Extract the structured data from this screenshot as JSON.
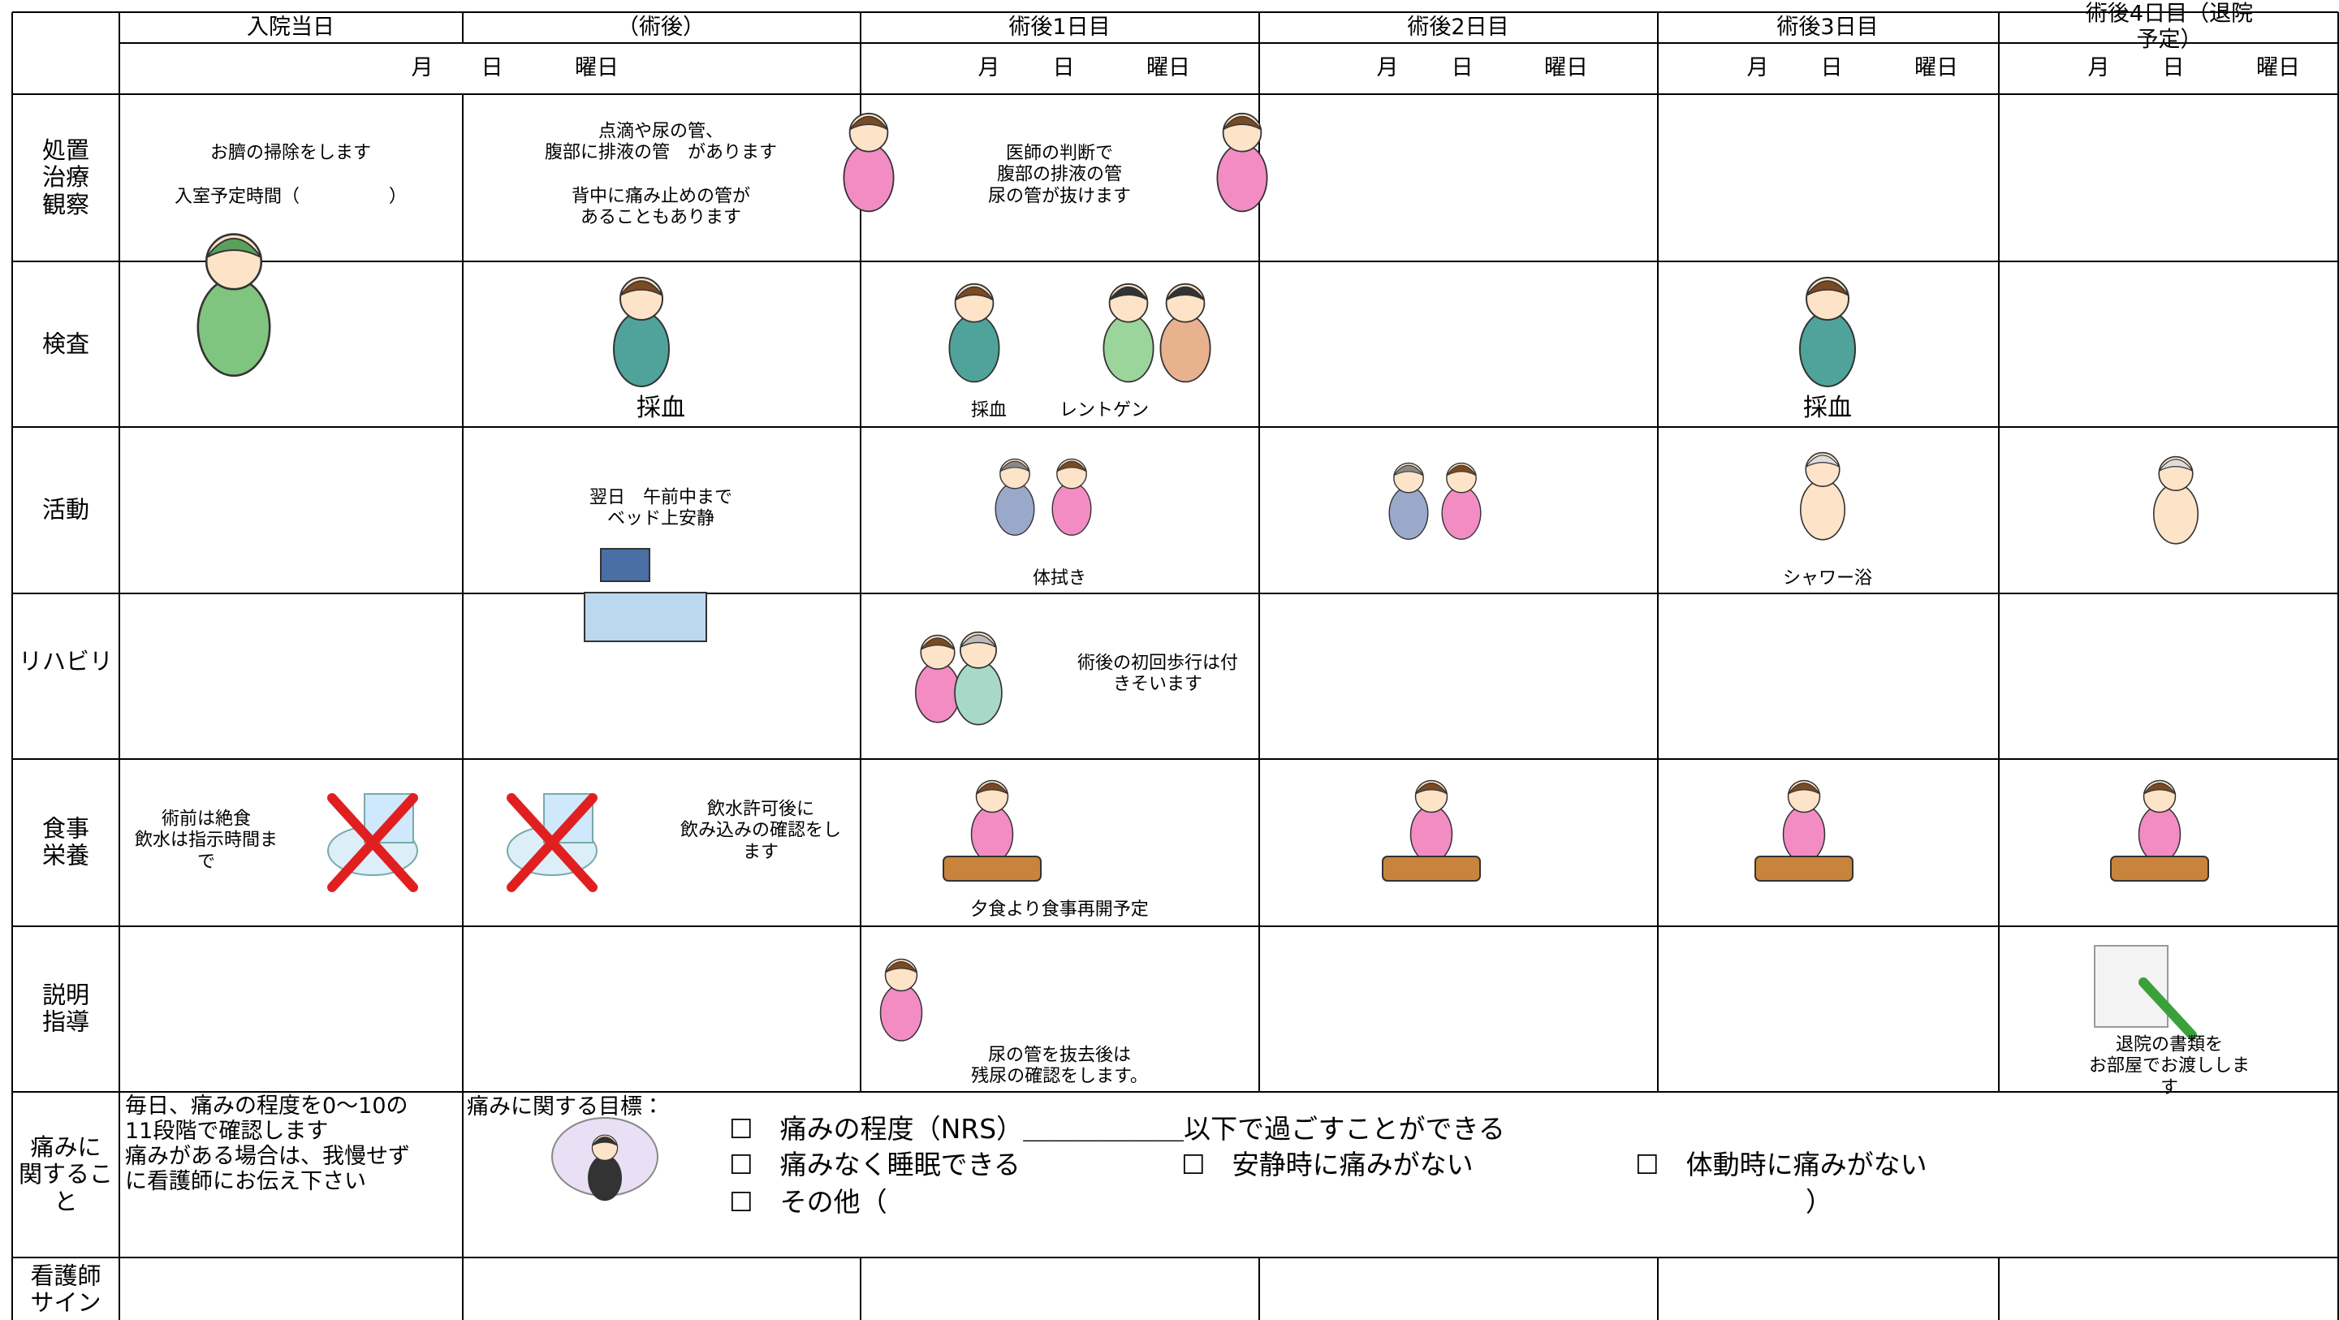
{
  "header": {
    "days": [
      "入院当日",
      "（術後）",
      "術後1日目",
      "術後2日目",
      "術後3日目",
      "術後4日目（退院予定）"
    ],
    "date_row": {
      "month": "月",
      "day": "日",
      "weekday": "曜日"
    }
  },
  "rows": [
    {
      "label": "処置\n治療\n観察",
      "cells": [
        "お臍の掃除をします",
        "入室予定時間（　　　　　）",
        "点滴や尿の管、\n腹部に排液の管　があります",
        "背中に痛み止めの管が\nあることもあります",
        "医師の判断で\n腹部の排液の管\n尿の管が抜けます"
      ]
    },
    {
      "label": "検査",
      "cells": [
        "採血",
        "採血",
        "レントゲン",
        "採血"
      ]
    },
    {
      "label": "活動",
      "cells": [
        "翌日　午前中まで\nベッド上安静",
        "体拭き",
        "シャワー浴"
      ]
    },
    {
      "label": "リハビリ",
      "cells": [
        "術後の初回歩行は付\nきそいます"
      ]
    },
    {
      "label": "食事\n栄養",
      "cells": [
        "術前は絶食\n飲水は指示時間ま\nで",
        "飲水許可後に\n飲み込みの確認をし\nます",
        "夕食より食事再開予定"
      ]
    },
    {
      "label": "説明\n指導",
      "cells": [
        "尿の管を抜去後は\n残尿の確認をします。",
        "退院の書類を\nお部屋でお渡しします"
      ]
    },
    {
      "label": "痛みに\n関するこ\nと",
      "cells": [
        "毎日、痛みの程度を0～10の\n11段階で確認します\n痛みがある場合は、我慢せず\nに看護師にお伝え下さい",
        "痛みに関する目標：",
        "☐　痛みの程度（NRS）＿＿＿＿＿＿以下で過ごすことができる",
        "☐　痛みなく睡眠できる",
        "☐　安静時に痛みがない",
        "☐　体動時に痛みがない",
        "☐　その他（",
        "）"
      ]
    },
    {
      "label": "看護師\nサイン",
      "cells": []
    }
  ]
}
